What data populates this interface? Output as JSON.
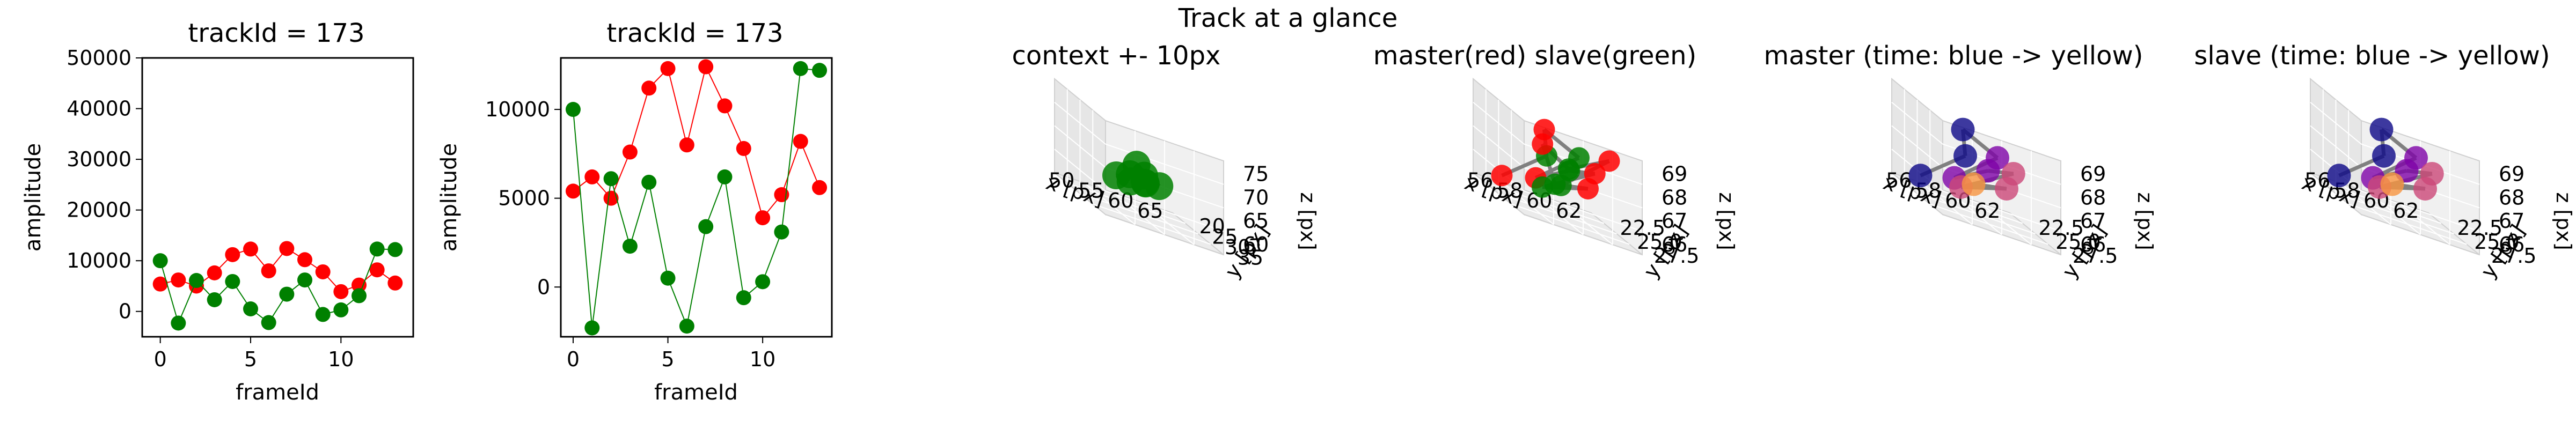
{
  "suptitle": "Track at a glance",
  "chart_data": [
    {
      "type": "line",
      "title": "trackId = 173",
      "xlabel": "frameId",
      "ylabel": "amplitude",
      "xlim": [
        -1,
        14
      ],
      "ylim": [
        -5000,
        50000
      ],
      "xticks": [
        0,
        5,
        10
      ],
      "yticks": [
        0,
        10000,
        20000,
        30000,
        40000,
        50000
      ],
      "x": [
        0,
        1,
        2,
        3,
        4,
        5,
        6,
        7,
        8,
        9,
        10,
        11,
        12,
        13
      ],
      "series": [
        {
          "color": "#ff0000",
          "values": [
            5400,
            6200,
            5000,
            7600,
            11200,
            12300,
            8000,
            12400,
            10200,
            7800,
            3900,
            5200,
            8200,
            5600
          ]
        },
        {
          "color": "#008000",
          "values": [
            10000,
            -2300,
            6100,
            2300,
            5900,
            500,
            -2200,
            3400,
            6200,
            -600,
            300,
            3100,
            12300,
            12200
          ]
        }
      ]
    },
    {
      "type": "line",
      "title": "trackId = 173",
      "xlabel": "frameId",
      "ylabel": "amplitude",
      "xlim": [
        -0.65,
        13.65
      ],
      "ylim": [
        -2800,
        12900
      ],
      "xticks": [
        0,
        5,
        10
      ],
      "yticks": [
        0,
        5000,
        10000
      ],
      "x": [
        0,
        1,
        2,
        3,
        4,
        5,
        6,
        7,
        8,
        9,
        10,
        11,
        12,
        13
      ],
      "series": [
        {
          "color": "#ff0000",
          "values": [
            5400,
            6200,
            5000,
            7600,
            11200,
            12300,
            8000,
            12400,
            10200,
            7800,
            3900,
            5200,
            8200,
            5600
          ]
        },
        {
          "color": "#008000",
          "values": [
            10000,
            -2300,
            6100,
            2300,
            5900,
            500,
            -2200,
            3400,
            6200,
            -600,
            300,
            3100,
            12300,
            12200
          ]
        }
      ]
    },
    {
      "type": "scatter",
      "title": "context +- 10px",
      "xlabel": "x [px]",
      "ylabel": "y [px]",
      "zlabel": "z [px]",
      "xticks": [
        "50",
        "55",
        "60",
        "65"
      ],
      "yticks": [
        "20",
        "25",
        "30",
        "35"
      ],
      "zticks": [
        "60",
        "65",
        "70",
        "75"
      ],
      "point_color": "#008000"
    },
    {
      "type": "scatter",
      "title": "master(red) slave(green)",
      "xlabel": "x [px]",
      "ylabel": "y [px]",
      "zlabel": "z [px]",
      "xticks": [
        "56",
        "58",
        "60",
        "62"
      ],
      "yticks": [
        "22.5",
        "25.0",
        "27.5"
      ],
      "zticks": [
        "66",
        "67",
        "68",
        "69"
      ],
      "colors": [
        "#ff0000",
        "#008000"
      ]
    },
    {
      "type": "scatter",
      "title": "master (time: blue -> yellow)",
      "xlabel": "x [px]",
      "ylabel": "y [px]",
      "zlabel": "z [px]",
      "xticks": [
        "56",
        "58",
        "60",
        "62"
      ],
      "yticks": [
        "22.5",
        "25.0",
        "27.5"
      ],
      "zticks": [
        "66",
        "67",
        "68",
        "69"
      ],
      "colormap": [
        "#0d0887",
        "#7e03a8",
        "#cc4778",
        "#f89540",
        "#f0f921"
      ]
    },
    {
      "type": "scatter",
      "title": "slave (time: blue -> yellow)",
      "xlabel": "x [px]",
      "ylabel": "y [px]",
      "zlabel": "z [px]",
      "xticks": [
        "56",
        "58",
        "60",
        "62"
      ],
      "yticks": [
        "22.5",
        "25.0",
        "27.5"
      ],
      "zticks": [
        "66",
        "67",
        "68",
        "69"
      ],
      "colormap": [
        "#0d0887",
        "#7e03a8",
        "#cc4778",
        "#f89540",
        "#f0f921"
      ]
    }
  ]
}
